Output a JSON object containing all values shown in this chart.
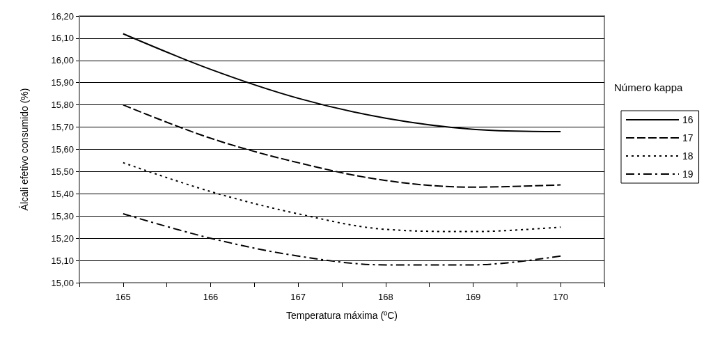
{
  "chart_data": {
    "type": "line",
    "xlabel": "Temperatura máxima (ºC)",
    "ylabel": "Álcali efetivo consumido (%)",
    "legend_title": "Número kappa",
    "x": [
      165,
      166,
      167,
      168,
      169,
      170
    ],
    "series": [
      {
        "name": "16",
        "color": "#000000",
        "line_style": "solid",
        "values": [
          16.12,
          15.96,
          15.83,
          15.74,
          15.69,
          15.68
        ]
      },
      {
        "name": "17",
        "color": "#000000",
        "line_style": "dashed",
        "values": [
          15.8,
          15.65,
          15.54,
          15.46,
          15.43,
          15.44
        ]
      },
      {
        "name": "18",
        "color": "#000000",
        "line_style": "dotted",
        "values": [
          15.54,
          15.41,
          15.31,
          15.24,
          15.23,
          15.25
        ]
      },
      {
        "name": "19",
        "color": "#000000",
        "line_style": "dashdot",
        "values": [
          15.31,
          15.2,
          15.12,
          15.08,
          15.08,
          15.12
        ]
      }
    ],
    "xlim": [
      164.5,
      170.5
    ],
    "xticks": [
      {
        "value": 164.5,
        "label": null
      },
      165,
      {
        "value": 165.5,
        "label": null
      },
      166,
      {
        "value": 166.5,
        "label": null
      },
      167,
      {
        "value": 167.5,
        "label": null
      },
      168,
      {
        "value": 168.5,
        "label": null
      },
      169,
      {
        "value": 169.5,
        "label": null
      },
      170,
      {
        "value": 170.5,
        "label": null
      }
    ],
    "ylim": [
      15.0,
      16.2
    ],
    "yticks": [
      {
        "value": 15.0,
        "label": "15,00"
      },
      {
        "value": 15.1,
        "label": "15,10"
      },
      {
        "value": 15.2,
        "label": "15,20"
      },
      {
        "value": 15.3,
        "label": "15,30"
      },
      {
        "value": 15.4,
        "label": "15,40"
      },
      {
        "value": 15.5,
        "label": "15,50"
      },
      {
        "value": 15.6,
        "label": "15,60"
      },
      {
        "value": 15.7,
        "label": "15,70"
      },
      {
        "value": 15.8,
        "label": "15,80"
      },
      {
        "value": 15.9,
        "label": "15,90"
      },
      {
        "value": 16.0,
        "label": "16,00"
      },
      {
        "value": 16.1,
        "label": "16,10"
      },
      {
        "value": 16.2,
        "label": "16,20"
      }
    ],
    "grid": "y",
    "legend": "right",
    "marker": "none"
  }
}
